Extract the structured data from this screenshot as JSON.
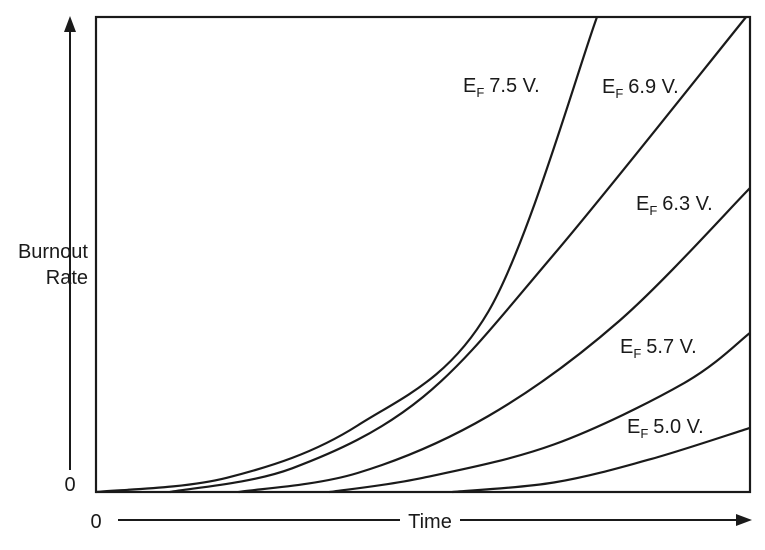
{
  "chart_data": {
    "type": "line",
    "title": "",
    "xlabel": "Time",
    "ylabel_line1": "Burnout",
    "ylabel_line2": "Rate",
    "x_origin_label": "0",
    "y_origin_label": "0",
    "xlim": [
      0,
      1
    ],
    "ylim": [
      0,
      1
    ],
    "grid": false,
    "legend": "inline",
    "series": [
      {
        "name": "7.5 V.",
        "symbol": "E",
        "subscript": "F",
        "start": 0.0,
        "points": [
          [
            0.0,
            0
          ],
          [
            0.2,
            0.03
          ],
          [
            0.4,
            0.14
          ],
          [
            0.6,
            0.38
          ],
          [
            0.766,
            1.0
          ]
        ]
      },
      {
        "name": "6.9 V.",
        "symbol": "E",
        "subscript": "F",
        "start": 0.113,
        "points": [
          [
            0.113,
            0
          ],
          [
            0.3,
            0.05
          ],
          [
            0.5,
            0.2
          ],
          [
            0.7,
            0.5
          ],
          [
            0.994,
            1.0
          ]
        ]
      },
      {
        "name": "6.3 V.",
        "symbol": "E",
        "subscript": "F",
        "start": 0.218,
        "points": [
          [
            0.218,
            0
          ],
          [
            0.4,
            0.04
          ],
          [
            0.6,
            0.16
          ],
          [
            0.8,
            0.36
          ],
          [
            1.0,
            0.64
          ]
        ]
      },
      {
        "name": "5.7 V.",
        "symbol": "E",
        "subscript": "F",
        "start": 0.357,
        "points": [
          [
            0.357,
            0
          ],
          [
            0.5,
            0.03
          ],
          [
            0.7,
            0.1
          ],
          [
            0.9,
            0.23
          ],
          [
            1.0,
            0.335
          ]
        ]
      },
      {
        "name": "5.0 V.",
        "symbol": "E",
        "subscript": "F",
        "start": 0.545,
        "points": [
          [
            0.545,
            0
          ],
          [
            0.7,
            0.02
          ],
          [
            0.85,
            0.07
          ],
          [
            1.0,
            0.135
          ]
        ]
      }
    ],
    "colors": {
      "line": "#1a1a1a",
      "background": "#ffffff"
    }
  }
}
